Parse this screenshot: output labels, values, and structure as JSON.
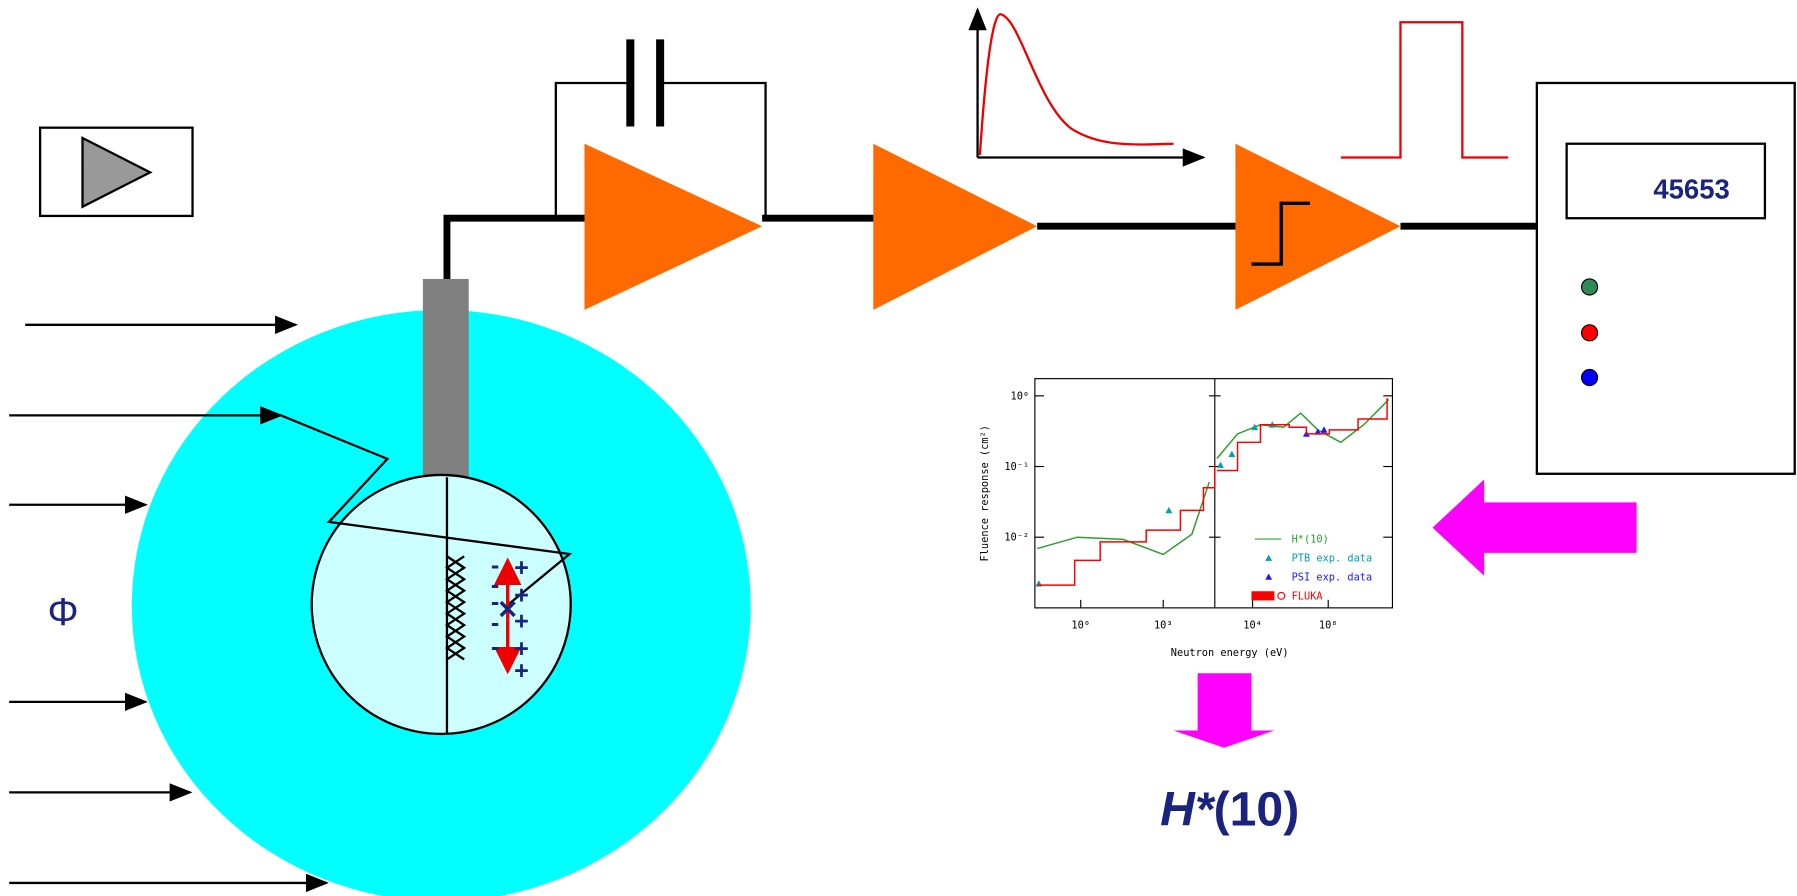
{
  "detector": {
    "flux_symbol": "Φ",
    "minus_sign": "-",
    "plus_sign": "+"
  },
  "counter": {
    "display": "45653"
  },
  "result_label": [
    "H*",
    "(10)"
  ],
  "inset_plot": {
    "type": "line",
    "ylabel": "Fluence response (cm²)",
    "xlabel": "Neutron energy (eV)",
    "log_x": true,
    "log_y": true,
    "ylim": [
      0.001,
      1.75
    ],
    "yticks": [
      {
        "value": 1,
        "label": "10⁰"
      },
      {
        "value": 0.1,
        "label": "10⁻¹"
      },
      {
        "value": 0.01,
        "label": "10⁻²"
      }
    ],
    "panels": [
      {
        "xlim": [
          0.0215,
          75000
        ],
        "xticks": [
          {
            "value": 1,
            "label": "10⁰"
          },
          {
            "value": 1000,
            "label": "10³"
          }
        ]
      },
      {
        "xlim": [
          100,
          250000000000
        ],
        "xticks": [
          {
            "value": 10000,
            "label": "10⁴"
          },
          {
            "value": 100000000,
            "label": "10⁸"
          }
        ]
      }
    ],
    "series": [
      {
        "name": "H*(10)",
        "color": "#2ca02c",
        "style": "line",
        "panels": [
          {
            "x": [
              0.026,
              0.75,
              35,
              1000,
              11000,
              47000
            ],
            "values": [
              0.0069,
              0.01,
              0.0093,
              0.0057,
              0.011,
              0.06
            ]
          },
          {
            "x": [
              130,
              1600,
              26000,
              440000,
              3500000,
              28000000,
              460000000,
              7600000000,
              160000000000
            ],
            "values": [
              0.13,
              0.29,
              0.39,
              0.36,
              0.57,
              0.33,
              0.22,
              0.39,
              0.89
            ]
          }
        ]
      },
      {
        "name": "PTB exp. data",
        "color": "#00a0b0",
        "style": "markers",
        "panels": [
          {
            "x": [
              0.03,
              1600
            ],
            "values": [
              0.0022,
              0.024
            ]
          },
          {
            "x": [
              200,
              800,
              13000,
              110000
            ],
            "values": [
              0.105,
              0.15,
              0.36,
              0.39
            ]
          }
        ]
      },
      {
        "name": "PSI exp. data",
        "color": "#1a1aff",
        "style": "markers",
        "panels": [
          {
            "x": [],
            "values": []
          },
          {
            "x": [
              7000000,
              28000000,
              60000000
            ],
            "values": [
              0.29,
              0.31,
              0.33
            ]
          }
        ]
      },
      {
        "name": "FLUKA",
        "color": "#ff0000",
        "style": "step",
        "panels": [
          {
            "x": [
              0.026,
              0.6,
              5.1,
              240,
              4200,
              29000,
              75000
            ],
            "values": [
              0.0021,
              0.0047,
              0.0086,
              0.0126,
              0.024,
              0.05,
              0.105
            ]
          },
          {
            "x": [
              130,
              1600,
              26000,
              870000,
              7000000,
              115000000,
              3800000000,
              130000000000
            ],
            "values": [
              0.088,
              0.22,
              0.39,
              0.36,
              0.29,
              0.33,
              0.47,
              0.93
            ]
          }
        ]
      }
    ]
  }
}
